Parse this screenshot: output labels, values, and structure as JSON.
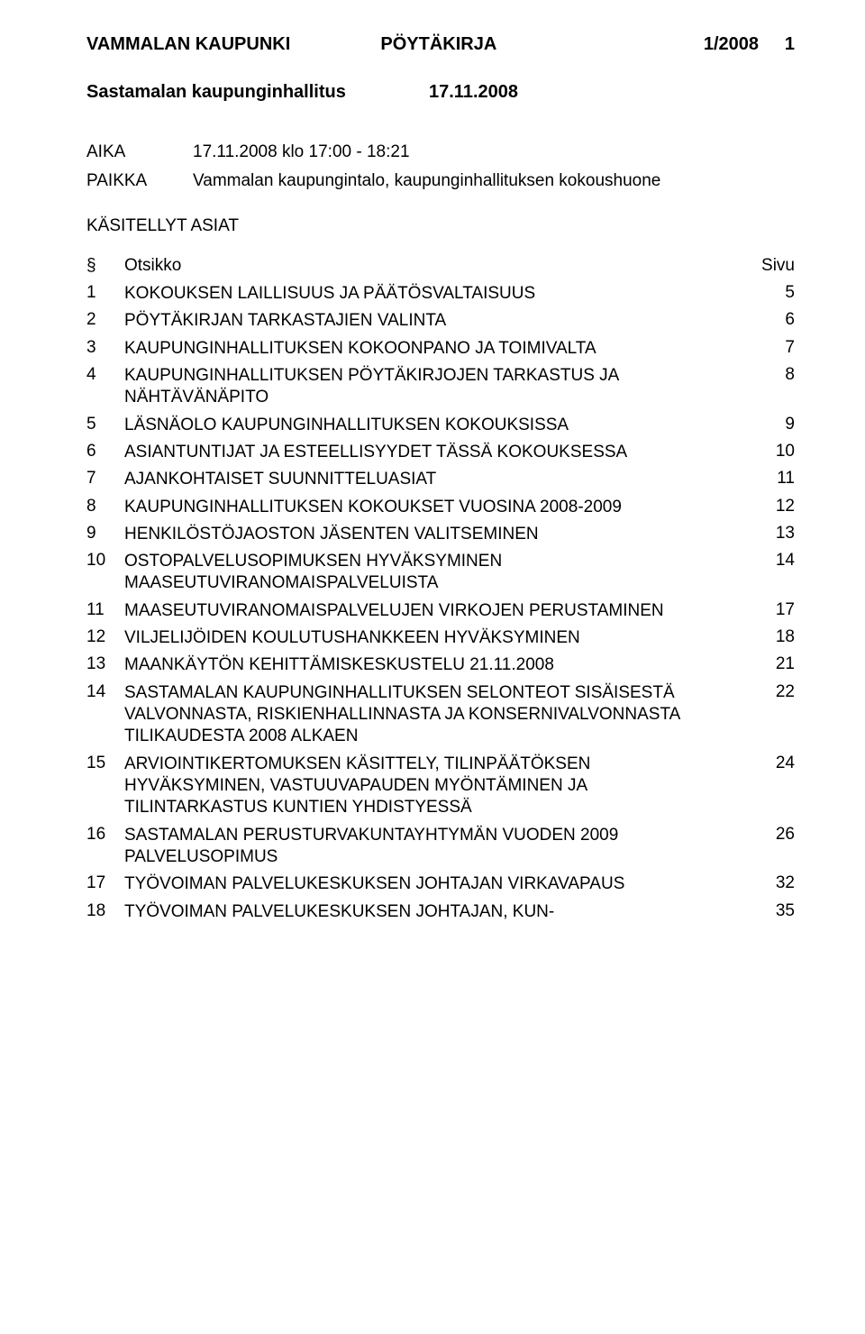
{
  "header": {
    "org": "VAMMALAN KAUPUNKI",
    "doc_type": "PÖYTÄKIRJA",
    "doc_num": "1/2008",
    "page_num": "1"
  },
  "sub_header": {
    "board": "Sastamalan kaupunginhallitus",
    "date": "17.11.2008"
  },
  "meeting": {
    "time_label": "AIKA",
    "time_value": "17.11.2008 klo 17:00 - 18:21",
    "place_label": "PAIKKA",
    "place_value": "Vammalan kaupungintalo, kaupunginhallituksen kokoushuone"
  },
  "section_title": "KÄSITELLYT ASIAT",
  "toc_head": {
    "section": "§",
    "title": "Otsikko",
    "page": "Sivu"
  },
  "toc": [
    {
      "n": "1",
      "t": "KOKOUKSEN LAILLISUUS JA PÄÄTÖSVALTAISUUS",
      "p": "5"
    },
    {
      "n": "2",
      "t": "PÖYTÄKIRJAN TARKASTAJIEN VALINTA",
      "p": "6"
    },
    {
      "n": "3",
      "t": "KAUPUNGINHALLITUKSEN KOKOONPANO JA TOIMIVALTA",
      "p": "7"
    },
    {
      "n": "4",
      "t": "KAUPUNGINHALLITUKSEN PÖYTÄKIRJOJEN TARKASTUS JA NÄHTÄVÄNÄPITO",
      "p": "8"
    },
    {
      "n": "5",
      "t": "LÄSNÄOLO KAUPUNGINHALLITUKSEN KOKOUKSISSA",
      "p": "9"
    },
    {
      "n": "6",
      "t": "ASIANTUNTIJAT JA ESTEELLISYYDET TÄSSÄ KOKOUKSESSA",
      "p": "10"
    },
    {
      "n": "7",
      "t": "AJANKOHTAISET SUUNNITTELUASIAT",
      "p": "11"
    },
    {
      "n": "8",
      "t": "KAUPUNGINHALLITUKSEN KOKOUKSET VUOSINA 2008-2009",
      "p": "12"
    },
    {
      "n": "9",
      "t": "HENKILÖSTÖJAOSTON JÄSENTEN VALITSEMINEN",
      "p": "13"
    },
    {
      "n": "10",
      "t": "OSTOPALVELUSOPIMUKSEN HYVÄKSYMINEN MAASEUTUVIRANOMAISPALVELUISTA",
      "p": "14"
    },
    {
      "n": "11",
      "t": "MAASEUTUVIRANOMAISPALVELUJEN VIRKOJEN PERUSTAMINEN",
      "p": "17"
    },
    {
      "n": "12",
      "t": "VILJELIJÖIDEN KOULUTUSHANKKEEN HYVÄKSYMINEN",
      "p": "18"
    },
    {
      "n": "13",
      "t": "MAANKÄYTÖN KEHITTÄMISKESKUSTELU 21.11.2008",
      "p": "21"
    },
    {
      "n": "14",
      "t": "SASTAMALAN KAUPUNGINHALLITUKSEN SELONTEOT SISÄISESTÄ VALVONNASTA, RISKIENHALLINNASTA JA KONSERNIVALVONNASTA TILIKAUDESTA 2008 ALKAEN",
      "p": "22"
    },
    {
      "n": "15",
      "t": "ARVIOINTIKERTOMUKSEN KÄSITTELY, TILINPÄÄTÖKSEN HYVÄKSYMINEN, VASTUUVAPAUDEN MYÖNTÄMINEN JA TILINTARKASTUS KUNTIEN YHDISTYESSÄ",
      "p": "24"
    },
    {
      "n": "16",
      "t": "SASTAMALAN PERUSTURVAKUNTAYHTYMÄN VUODEN 2009 PALVELUSOPIMUS",
      "p": "26"
    },
    {
      "n": "17",
      "t": "TYÖVOIMAN PALVELUKESKUKSEN JOHTAJAN VIRKAVAPAUS",
      "p": "32"
    },
    {
      "n": "18",
      "t": "TYÖVOIMAN PALVELUKESKUKSEN JOHTAJAN, KUN-",
      "p": "35"
    }
  ]
}
